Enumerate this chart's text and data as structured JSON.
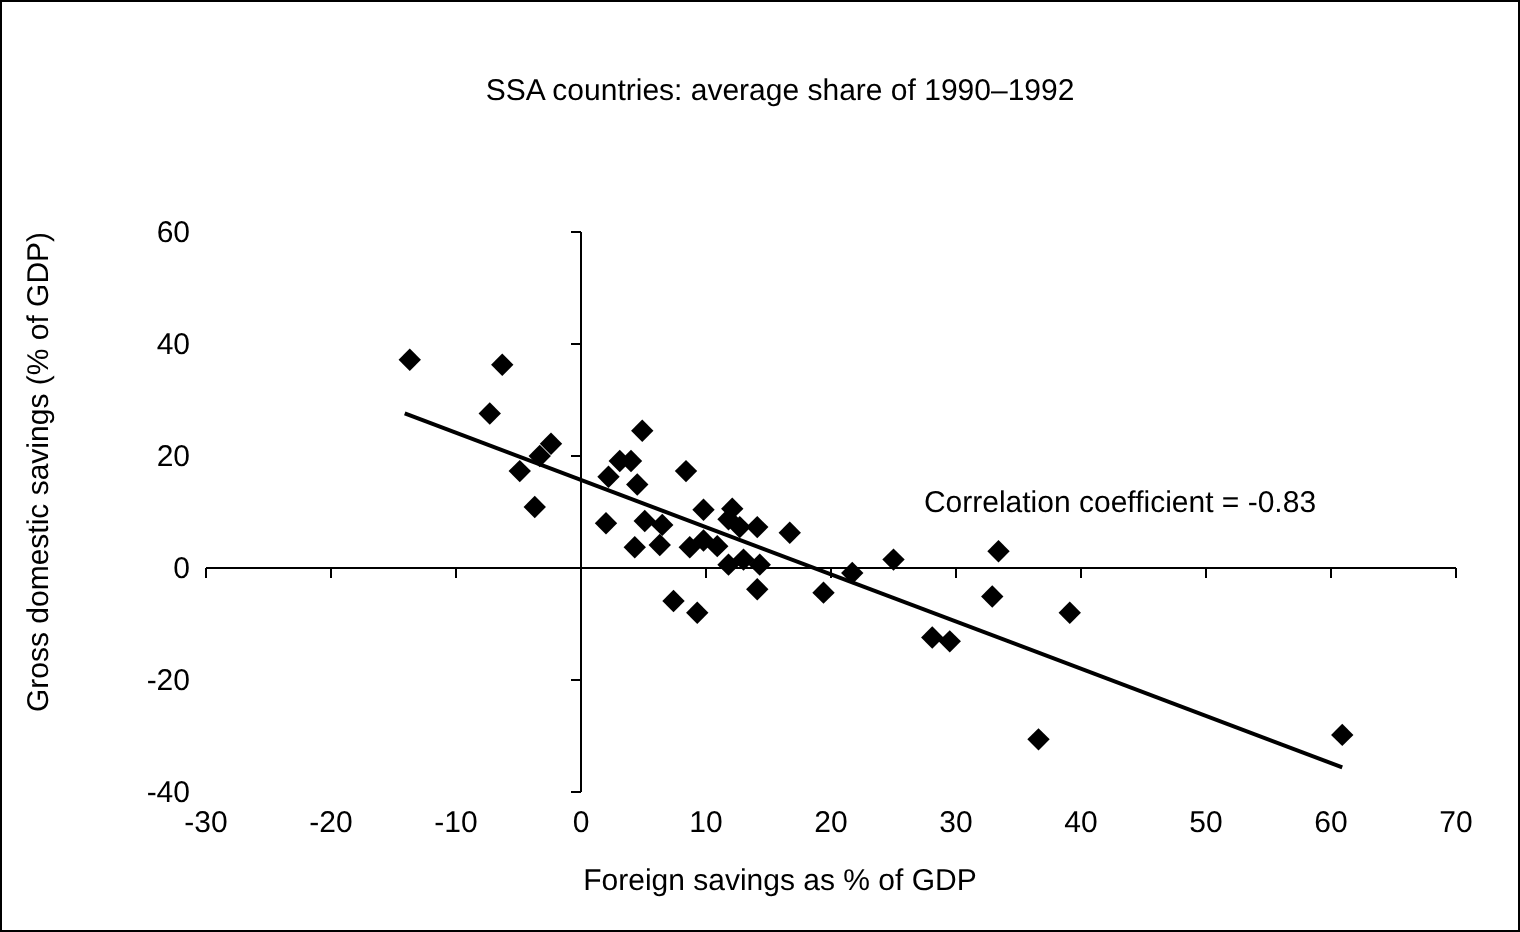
{
  "chart_data": {
    "type": "scatter",
    "title": "SSA countries: average share of 1990–1992",
    "xlabel": "Foreign savings as % of GDP",
    "ylabel": "Gross domestic savings (% of GDP)",
    "annotations": [
      "Correlation coefficient = -0.83"
    ],
    "xlim": [
      -30,
      70
    ],
    "ylim": [
      -40,
      60
    ],
    "xticks": [
      -30,
      -20,
      -10,
      0,
      10,
      20,
      30,
      40,
      50,
      60,
      70
    ],
    "yticks": [
      -40,
      -20,
      0,
      20,
      40,
      60
    ],
    "marker": "diamond",
    "series": [
      {
        "type": "scatter",
        "color": "#000000",
        "x": [
          -13.7,
          -6.3,
          -7.3,
          -2.4,
          -3.3,
          -4.9,
          -3.7,
          4.9,
          3.1,
          4.0,
          2.2,
          4.5,
          8.4,
          2.0,
          5.1,
          6.5,
          4.3,
          6.3,
          9.8,
          8.7,
          9.8,
          10.9,
          12.1,
          11.8,
          12.7,
          14.1,
          16.7,
          11.8,
          13.0,
          14.3,
          14.1,
          7.4,
          9.3,
          19.4,
          21.7,
          25.0,
          28.1,
          29.5,
          33.4,
          32.9,
          39.1,
          36.6,
          60.9
        ],
        "values": [
          37.2,
          36.3,
          27.6,
          22.2,
          20,
          17.3,
          10.9,
          24.5,
          19.1,
          19.1,
          16.3,
          14.9,
          17.3,
          8.0,
          8.4,
          7.7,
          3.7,
          4.1,
          10.4,
          3.7,
          4.9,
          3.9,
          10.6,
          8.7,
          7.3,
          7.3,
          6.3,
          0.6,
          1.5,
          0.6,
          -3.8,
          -5.9,
          -8.0,
          -4.4,
          -0.9,
          1.5,
          -12.4,
          -13.1,
          3.0,
          -5.1,
          -8.0,
          -30.6,
          -29.8
        ]
      },
      {
        "type": "line",
        "color": "#000000",
        "marker": "none",
        "x": [
          -14.1,
          60.9
        ],
        "values": [
          27.6,
          -35.6
        ]
      }
    ]
  }
}
